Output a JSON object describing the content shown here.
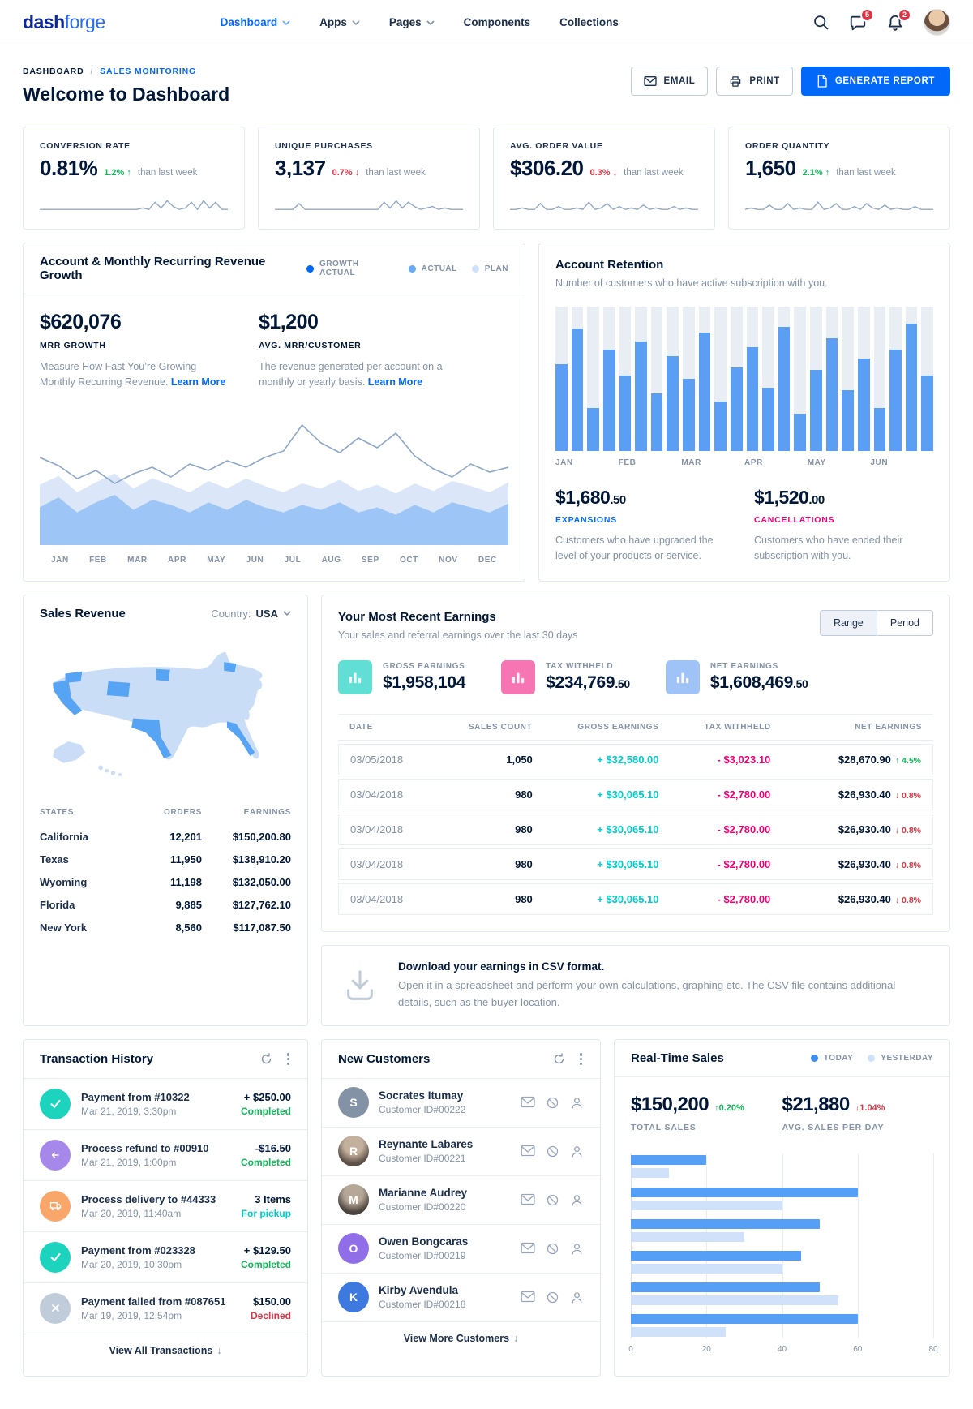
{
  "navbar": {
    "logo": {
      "part1": "dash",
      "part2": "forge"
    },
    "items": [
      {
        "label": "Dashboard",
        "active": true,
        "chevron": true
      },
      {
        "label": "Apps",
        "active": false,
        "chevron": true
      },
      {
        "label": "Pages",
        "active": false,
        "chevron": true
      },
      {
        "label": "Components",
        "active": false,
        "chevron": false
      },
      {
        "label": "Collections",
        "active": false,
        "chevron": false
      }
    ],
    "badges": {
      "messages": "5",
      "notifications": "2"
    }
  },
  "header": {
    "breadcrumb": {
      "parent": "DASHBOARD",
      "separator": "/",
      "current": "SALES MONITORING"
    },
    "title": "Welcome to Dashboard",
    "actions": {
      "email": "EMAIL",
      "print": "PRINT",
      "generate": "GENERATE REPORT"
    }
  },
  "kpis": [
    {
      "label": "CONVERSION RATE",
      "value": "0.81%",
      "delta": "1.2%",
      "direction": "up",
      "note": "than last week",
      "spark": [
        1,
        1,
        1,
        1,
        1,
        1,
        1,
        1,
        1,
        1,
        1,
        1,
        1,
        1,
        1,
        1,
        1,
        2,
        1,
        6,
        2,
        7,
        3,
        1,
        2,
        6,
        1,
        7,
        2,
        6,
        1,
        1
      ]
    },
    {
      "label": "UNIQUE PURCHASES",
      "value": "3,137",
      "delta": "0.7%",
      "direction": "down",
      "note": "than last week",
      "spark": [
        1,
        1,
        1,
        1,
        5,
        1,
        1,
        1,
        1,
        1,
        1,
        1,
        1,
        1,
        1,
        1,
        1,
        1,
        6,
        2,
        7,
        2,
        6,
        3,
        1,
        2,
        3,
        1,
        2,
        1,
        1,
        1
      ]
    },
    {
      "label": "AVG. ORDER VALUE",
      "value": "$306.20",
      "delta": "0.3%",
      "direction": "down",
      "note": "than last week",
      "spark": [
        1,
        1,
        2,
        1,
        1,
        5,
        1,
        1,
        3,
        1,
        1,
        2,
        1,
        6,
        1,
        2,
        5,
        1,
        3,
        1,
        2,
        1,
        4,
        1,
        2,
        1,
        1,
        3,
        1,
        2,
        1,
        1
      ]
    },
    {
      "label": "ORDER QUANTITY",
      "value": "1,650",
      "delta": "2.1%",
      "direction": "up",
      "note": "than last week",
      "spark": [
        1,
        2,
        1,
        1,
        4,
        1,
        1,
        5,
        1,
        2,
        1,
        1,
        6,
        1,
        2,
        5,
        1,
        1,
        3,
        1,
        5,
        2,
        1,
        4,
        1,
        2,
        1,
        1,
        3,
        1,
        1,
        1
      ]
    }
  ],
  "mrr": {
    "title": "Account & Monthly Recurring Revenue Growth",
    "legend": [
      {
        "label": "GROWTH ACTUAL",
        "color": "#0168fa"
      },
      {
        "label": "ACTUAL",
        "color": "#66a9f4"
      },
      {
        "label": "PLAN",
        "color": "#cfe1f8"
      }
    ],
    "stats": [
      {
        "value": "$620,076",
        "label": "MRR GROWTH",
        "description": "Measure How Fast You’re Growing Monthly Recurring Revenue.",
        "link": "Learn More"
      },
      {
        "value": "$1,200",
        "label": "AVG. MRR/CUSTOMER",
        "description": "The revenue generated per account on a monthly or yearly basis.",
        "link": "Learn More"
      }
    ],
    "months": [
      "JAN",
      "FEB",
      "MAR",
      "APR",
      "MAY",
      "JUN",
      "JUL",
      "AUG",
      "SEP",
      "OCT",
      "NOV",
      "DEC"
    ],
    "series": {
      "growth_line": [
        54,
        49,
        41,
        46,
        38,
        44,
        48,
        42,
        50,
        46,
        52,
        48,
        54,
        58,
        74,
        63,
        57,
        66,
        60,
        69,
        55,
        47,
        42,
        50,
        45,
        48
      ],
      "actual": [
        30,
        38,
        26,
        34,
        40,
        28,
        36,
        32,
        26,
        34,
        28,
        36,
        30,
        26,
        32,
        28,
        34,
        26,
        30,
        24,
        32,
        26,
        34,
        30,
        26,
        33
      ],
      "plan": [
        48,
        55,
        42,
        50,
        57,
        45,
        53,
        48,
        42,
        51,
        45,
        53,
        47,
        42,
        49,
        45,
        52,
        43,
        48,
        41,
        49,
        43,
        51,
        47,
        42,
        50
      ]
    }
  },
  "retention": {
    "title": "Account Retention",
    "subtitle": "Number of customers who have active subscription with you.",
    "months": [
      "JAN",
      "FEB",
      "MAR",
      "APR",
      "MAY",
      "JUN"
    ],
    "bars": [
      60,
      85,
      30,
      70,
      52,
      76,
      40,
      66,
      50,
      82,
      34,
      58,
      72,
      44,
      86,
      26,
      56,
      78,
      42,
      64,
      30,
      70,
      88,
      52
    ],
    "stats": [
      {
        "value": "$1,680",
        "cents": ".50",
        "label": "EXPANSIONS",
        "label_color": "#0168fa",
        "description": "Customers who have upgraded the level of your products or service."
      },
      {
        "value": "$1,520",
        "cents": ".00",
        "label": "CANCELLATIONS",
        "label_color": "#f10075",
        "description": "Customers who have ended their subscription with you."
      }
    ]
  },
  "sales_revenue": {
    "title": "Sales Revenue",
    "country_label": "Country:",
    "country_value": "USA",
    "table": {
      "headers": [
        "STATES",
        "ORDERS",
        "EARNINGS"
      ],
      "rows": [
        {
          "state": "California",
          "orders": "12,201",
          "earnings": "$150,200.80"
        },
        {
          "state": "Texas",
          "orders": "11,950",
          "earnings": "$138,910.20"
        },
        {
          "state": "Wyoming",
          "orders": "11,198",
          "earnings": "$132,050.00"
        },
        {
          "state": "Florida",
          "orders": "9,885",
          "earnings": "$127,762.10"
        },
        {
          "state": "New York",
          "orders": "8,560",
          "earnings": "$117,087.50"
        }
      ]
    }
  },
  "earnings": {
    "title": "Your Most Recent Earnings",
    "subtitle": "Your sales and referral earnings over the last 30 days",
    "toggle": [
      "Range",
      "Period"
    ],
    "summary": [
      {
        "label": "GROSS EARNINGS",
        "value": "$1,958,104",
        "cents": "",
        "color": "#62dfd4"
      },
      {
        "label": "TAX WITHHELD",
        "value": "$234,769",
        "cents": ".50",
        "color": "#f576b2"
      },
      {
        "label": "NET EARNINGS",
        "value": "$1,608,469",
        "cents": ".50",
        "color": "#9fc3f7"
      }
    ],
    "table": {
      "headers": [
        "DATE",
        "SALES COUNT",
        "GROSS EARNINGS",
        "TAX WITHHELD",
        "NET EARNINGS"
      ],
      "rows": [
        {
          "date": "03/05/2018",
          "count": "1,050",
          "gross": "+ $32,580.00",
          "tax": "- $3,023.10",
          "net": "$28,670.90",
          "pct": "4.5%",
          "dir": "up"
        },
        {
          "date": "03/04/2018",
          "count": "980",
          "gross": "+ $30,065.10",
          "tax": "- $2,780.00",
          "net": "$26,930.40",
          "pct": "0.8%",
          "dir": "down"
        },
        {
          "date": "03/04/2018",
          "count": "980",
          "gross": "+ $30,065.10",
          "tax": "- $2,780.00",
          "net": "$26,930.40",
          "pct": "0.8%",
          "dir": "down"
        },
        {
          "date": "03/04/2018",
          "count": "980",
          "gross": "+ $30,065.10",
          "tax": "- $2,780.00",
          "net": "$26,930.40",
          "pct": "0.8%",
          "dir": "down"
        },
        {
          "date": "03/04/2018",
          "count": "980",
          "gross": "+ $30,065.10",
          "tax": "- $2,780.00",
          "net": "$26,930.40",
          "pct": "0.8%",
          "dir": "down"
        }
      ]
    }
  },
  "csv": {
    "title": "Download your earnings in CSV format.",
    "body": "Open it in a spreadsheet and perform your own calculations, graphing etc. The CSV file contains additional details, such as the buyer location."
  },
  "transactions": {
    "title": "Transaction History",
    "items": [
      {
        "icon": "check",
        "icon_bg": "#1cd4be",
        "title": "Payment from #10322",
        "date": "Mar 21, 2019, 3:30pm",
        "amount": "+ $250.00",
        "status": "Completed",
        "status_color": "#10b759"
      },
      {
        "icon": "return",
        "icon_bg": "#a588e9",
        "title": "Process refund to #00910",
        "date": "Mar 21, 2019, 1:00pm",
        "amount": "-$16.50",
        "status": "Completed",
        "status_color": "#10b759"
      },
      {
        "icon": "truck",
        "icon_bg": "#f9a66b",
        "title": "Process delivery to #44333",
        "date": "Mar 20, 2019, 11:40am",
        "amount": "3 Items",
        "status": "For pickup",
        "status_color": "#00cccc"
      },
      {
        "icon": "check",
        "icon_bg": "#1cd4be",
        "title": "Payment from #023328",
        "date": "Mar 20, 2019, 10:30pm",
        "amount": "+ $129.50",
        "status": "Completed",
        "status_color": "#10b759"
      },
      {
        "icon": "x",
        "icon_bg": "#c0ccda",
        "title": "Payment failed from #087651",
        "date": "Mar 19, 2019, 12:54pm",
        "amount": "$150.00",
        "status": "Declined",
        "status_color": "#dc3545"
      }
    ],
    "footer": "View All Transactions"
  },
  "customers": {
    "title": "New Customers",
    "items": [
      {
        "initial": "S",
        "avatar_bg": "#8392a5",
        "type": "initial",
        "name": "Socrates Itumay",
        "id": "Customer ID#00222"
      },
      {
        "initial": "R",
        "avatar_bg": "#7a6a5f",
        "type": "photo",
        "name": "Reynante Labares",
        "id": "Customer ID#00221"
      },
      {
        "initial": "M",
        "avatar_bg": "#5c5550",
        "type": "photo",
        "name": "Marianne Audrey",
        "id": "Customer ID#00220"
      },
      {
        "initial": "O",
        "avatar_bg": "#8f6ee8",
        "type": "initial",
        "name": "Owen Bongcaras",
        "id": "Customer ID#00219"
      },
      {
        "initial": "K",
        "avatar_bg": "#3e79e0",
        "type": "initial",
        "name": "Kirby Avendula",
        "id": "Customer ID#00218"
      }
    ],
    "footer": "View More Customers"
  },
  "realtime": {
    "title": "Real-Time Sales",
    "legend": [
      {
        "label": "TODAY",
        "color": "#3f8ef5"
      },
      {
        "label": "YESTERDAY",
        "color": "#cfe3fb"
      }
    ],
    "stats": [
      {
        "value": "$150,200",
        "pct": "0.20%",
        "dir": "up",
        "label": "TOTAL SALES"
      },
      {
        "value": "$21,880",
        "pct": "1.04%",
        "dir": "down",
        "label": "AVG. SALES PER DAY"
      }
    ],
    "chart": {
      "type": "bar",
      "today": [
        20,
        60,
        50,
        45,
        50,
        60
      ],
      "yesterday": [
        10,
        40,
        30,
        40,
        55,
        25
      ],
      "xticks": [
        "0",
        "20",
        "40",
        "60",
        "80"
      ],
      "xmax": 80
    }
  }
}
